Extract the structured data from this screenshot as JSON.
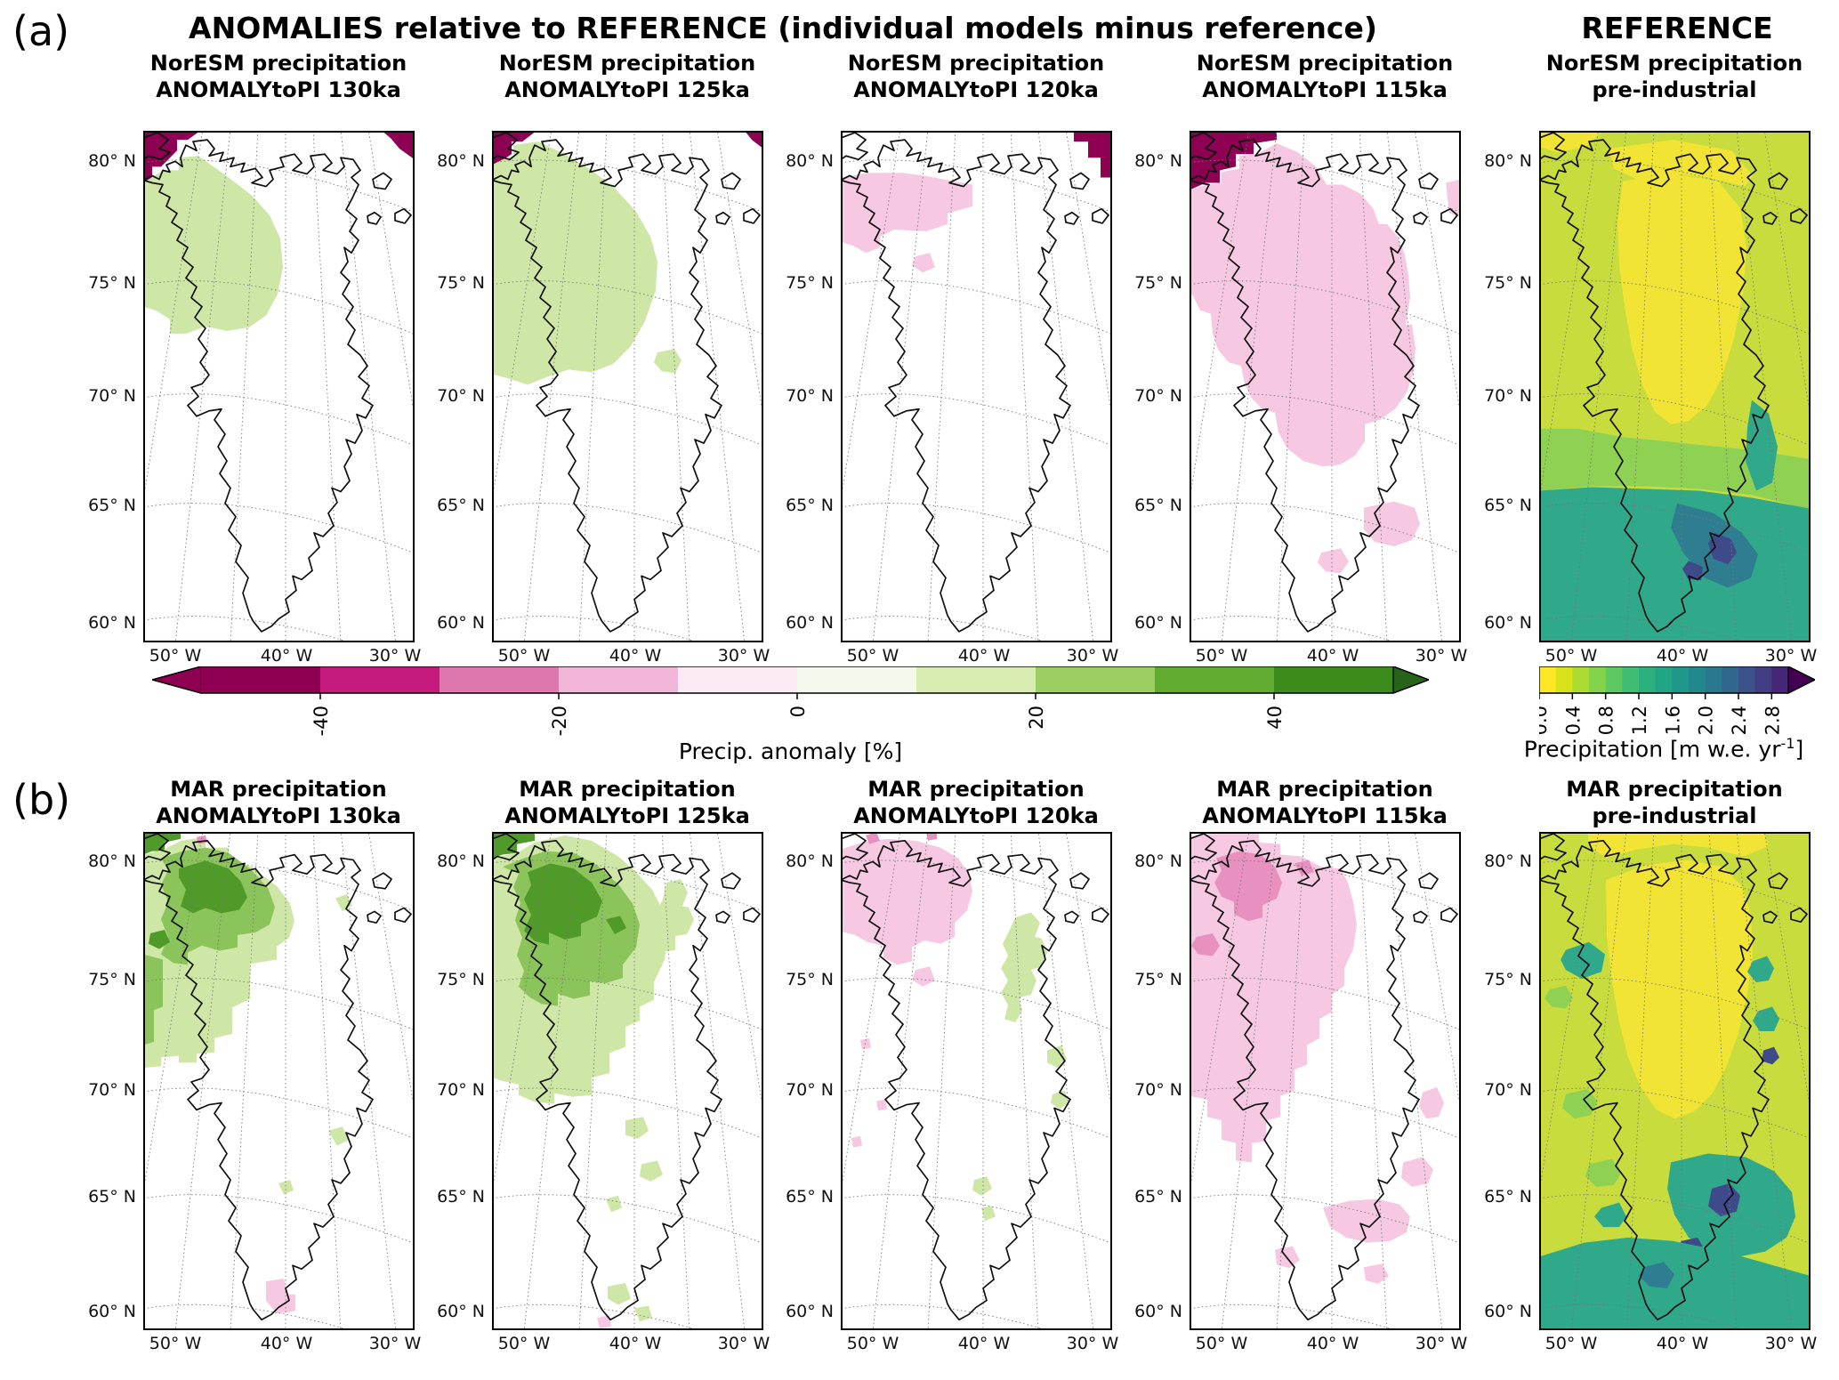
{
  "labels": {
    "panel_a": "(a)",
    "panel_b": "(b)"
  },
  "header": {
    "anomalies_title": "ANOMALIES relative to REFERENCE (individual models minus reference)",
    "reference_title": "REFERENCE"
  },
  "axes": {
    "lat_ticks": [
      "80° N",
      "75° N",
      "70° N",
      "65° N",
      "60° N"
    ],
    "lon_ticks": [
      "50° W",
      "40° W",
      "30° W"
    ]
  },
  "palette": {
    "white": "#ffffff",
    "pinkDarkest": "#8e0152",
    "pinkMed": "#e891c0",
    "pinkLight": "#f6c8e1",
    "greenLight": "#cfe7a6",
    "greenMed": "#8cc45c",
    "greenDark": "#4f9a28",
    "refBase": "#c9dc3e",
    "refYellow": "#f1e434",
    "refGreen": "#8ed153",
    "refTeal": "#2fa989",
    "refTealDark": "#2f7d90",
    "refBlue": "#3f4a8a"
  },
  "colorbars": {
    "anomaly": {
      "label": "Precip. anomaly [%]",
      "ticks": [
        "-40",
        "-20",
        "0",
        "20",
        "40"
      ],
      "tick_positions": [
        0.1,
        0.3,
        0.5,
        0.7,
        0.9
      ],
      "left_arrow": "#8e0152",
      "right_arrow": "#276419",
      "segments": [
        "#8e0152",
        "#c51b7d",
        "#de77ae",
        "#f1b6da",
        "#fbeaf3",
        "#f3f8eb",
        "#d9edb3",
        "#9ccf63",
        "#62ab31",
        "#3d8a1d"
      ]
    },
    "reference": {
      "label_pre": "Precipitation [m w.e. yr",
      "label_sup": "-1",
      "label_post": "]",
      "ticks": [
        "0.0",
        "0.4",
        "0.8",
        "1.2",
        "1.6",
        "2.0",
        "2.4",
        "2.8"
      ],
      "tick_positions": [
        0,
        0.1333,
        0.2667,
        0.4,
        0.5333,
        0.6667,
        0.8,
        0.9333
      ],
      "right_arrow": "#440154",
      "segments": [
        "#fde725",
        "#d8e219",
        "#addc30",
        "#84d44b",
        "#5ec962",
        "#40bd72",
        "#2cb17e",
        "#21a585",
        "#1f978b",
        "#23888e",
        "#2a788e",
        "#32678d",
        "#3b528b",
        "#433d84",
        "#462777"
      ]
    }
  },
  "rows": [
    {
      "id": "a",
      "maps": [
        {
          "title1": "NorESM precipitation",
          "title2": "ANOMALYtoPI 130ka",
          "type": "anomaly",
          "base": "white",
          "patches": [
            {
              "f": "pinkDarkest",
              "p": "0,0 64,0 50,10 38,10 38,22 20,40 10,40 10,52 0,58"
            },
            {
              "f": "pinkDarkest",
              "p": "268,0 305,0 305,32 288,20 278,8"
            },
            {
              "f": "greenLight",
              "p": "0,58 22,44 40,44 40,30 62,28 96,52 122,72 142,94 154,120 157,152 151,182 138,206 119,219 94,223 70,218 48,226 30,226 30,210 14,200 0,196"
            }
          ]
        },
        {
          "title1": "NorESM precipitation",
          "title2": "ANOMALYtoPI 125ka",
          "type": "anomaly",
          "base": "white",
          "patches": [
            {
              "f": "pinkDarkest",
              "p": "0,0 50,0 34,12 22,12 22,26 10,34 0,38"
            },
            {
              "f": "pinkDarkest",
              "p": "284,0 305,0 305,20 292,10"
            },
            {
              "f": "greenLight",
              "p": "0,38 12,32 24,28 24,16 52,12 82,26 112,44 138,64 162,90 178,118 186,146 184,178 172,212 156,240 136,260 112,269 86,266 60,275 40,283 22,277 0,271"
            },
            {
              "f": "greenLight",
              "p": "186,247 205,243 213,256 206,270 191,268 182,258"
            }
          ]
        },
        {
          "title1": "NorESM precipitation",
          "title2": "ANOMALYtoPI 120ka",
          "type": "anomaly",
          "base": "white",
          "patches": [
            {
              "f": "pinkDarkest",
              "p": "262,0 305,0 305,52 292,52 292,30 278,30 278,12 262,12"
            },
            {
              "f": "pinkLight",
              "p": "0,52 30,47 70,47 100,51 120,55 148,60 148,84 120,92 120,104 96,112 60,110 44,118 44,130 28,136 14,128 0,124"
            },
            {
              "f": "pinkLight",
              "p": "84,140 100,136 106,152 92,158 80,150"
            }
          ]
        },
        {
          "title1": "NorESM precipitation",
          "title2": "ANOMALYtoPI 115ka",
          "type": "anomaly",
          "base": "white",
          "patches": [
            {
              "f": "pinkDarkest",
              "p": "0,0 98,0 98,10 72,14 72,26 52,26 52,40 34,44 34,58 18,58 0,66"
            },
            {
              "f": "pinkLight",
              "p": "0,66 20,60 36,58 36,46 56,42 56,28 76,26 98,14 122,24 142,40 154,60 172,60 192,70 206,86 213,104 222,104 234,118 242,138 246,160 248,186 243,216 250,216 254,242 252,268 244,292 231,310 214,322 197,327 197,346 186,362 169,372 150,374 128,368 110,354 100,336 96,314 82,310 70,298 62,282 58,262 44,258 32,244 26,226 24,204 12,200 4,184 0,180"
            },
            {
              "f": "pinkLight",
              "p": "288,58 305,54 305,96 292,92"
            },
            {
              "f": "pinkLight",
              "p": "196,420 230,413 253,420 259,438 250,456 230,463 208,458 196,444"
            },
            {
              "f": "pinkLight",
              "p": "148,470 170,465 179,480 170,493 153,491 144,481"
            }
          ]
        },
        {
          "title1": "NorESM precipitation",
          "title2": "pre-industrial",
          "type": "reference",
          "base": "refBase",
          "patches": [
            {
              "f": "refYellow",
              "p": "0,0 72,0 52,18 20,24 0,18"
            },
            {
              "f": "refYellow",
              "p": "78,20 150,10 216,22 240,50 231,62 190,52 150,48 110,54 84,42"
            },
            {
              "f": "refYellow",
              "p": "94,56 150,48 201,56 226,86 233,131 229,181 219,231 205,276 189,306 168,323 148,327 130,313 116,283 104,241 96,196 90,149 88,101"
            },
            {
              "f": "refGreen",
              "p": "0,332 44,332 92,341 142,346 192,351 242,356 305,366 305,422 240,406 180,399 120,396 60,396 0,401"
            },
            {
              "f": "refTeal",
              "p": "0,401 60,397 120,399 180,401 240,409 305,421 305,570 0,570"
            },
            {
              "f": "refTeal",
              "p": "239,300 258,315 268,352 262,392 244,401 232,368 234,330"
            },
            {
              "f": "refTealDark",
              "p": "155,415 196,426 228,448 246,472 238,498 212,509 184,497 162,470 148,442"
            },
            {
              "f": "refBlue",
              "p": "197,448 216,455 222,470 212,483 196,477 190,460"
            },
            {
              "f": "refBlue",
              "p": "168,479 184,486 182,501 167,499 161,488"
            }
          ]
        }
      ]
    },
    {
      "id": "b",
      "maps": [
        {
          "title1": "MAR precipitation",
          "title2": "ANOMALYtoPI 130ka",
          "type": "anomaly",
          "base": "white",
          "patches": [
            {
              "f": "greenDark",
              "p": "0,0 42,0 42,8 24,12 24,22 10,22 0,26"
            },
            {
              "f": "greenLight",
              "p": "0,26 24,20 42,10 70,6 70,18 96,18 96,30 122,40 150,62 165,82 170,102 164,121 150,131 150,146 120,151 120,191 100,201 100,231 80,236 80,252 60,254 60,264 40,264 40,256 20,258 20,268 0,270"
            },
            {
              "f": "greenMed",
              "p": "20,30 44,22 70,18 96,24 120,42 140,64 148,86 142,106 126,115 106,118 106,132 86,136 66,130 50,138 50,152 34,150 20,140 28,120 20,100 28,80 20,60 28,44"
            },
            {
              "f": "greenMed",
              "p": "0,140 22,146 22,200 12,204 12,240 0,244"
            },
            {
              "f": "greenDark",
              "p": "40,42 70,33 96,42 110,57 117,75 108,89 88,93 70,87 56,93 42,85 48,66 40,52"
            },
            {
              "f": "greenDark",
              "p": "8,116 24,112 30,126 18,134 6,128"
            },
            {
              "f": "greenLight",
              "p": "216,76 229,71 235,84 224,91"
            },
            {
              "f": "greenLight",
              "p": "208,342 224,337 231,352 218,359"
            },
            {
              "f": "greenLight",
              "p": "152,402 165,398 169,410 158,415"
            },
            {
              "f": "pinkLight",
              "p": "138,514 158,511 162,529 171,529 171,548 150,551 138,536"
            },
            {
              "f": "pinkMed",
              "p": "60,6 70,4 72,12 62,14"
            }
          ]
        },
        {
          "title1": "MAR precipitation",
          "title2": "ANOMALYtoPI 125ka",
          "type": "anomaly",
          "base": "white",
          "patches": [
            {
              "f": "greenDark",
              "p": "0,0 48,0 48,10 28,14 28,24 12,26 0,30"
            },
            {
              "f": "greenLight",
              "p": "0,30 28,24 48,12 82,4 112,10 142,28 162,46 180,66 192,90 198,116 194,146 182,172 182,192 166,200 166,216 150,223 150,246 132,253 132,276 112,281 112,301 90,303 70,299 70,311 48,309 30,301 30,289 12,285 0,281"
            },
            {
              "f": "greenMed",
              "p": "12,40 36,30 60,22 92,24 118,38 142,60 158,82 166,106 162,132 147,152 147,167 128,173 110,171 110,187 92,191 74,185 74,199 56,197 42,189 30,177 36,159 28,141 34,121 26,101 32,81 24,63 30,48"
            },
            {
              "f": "greenDark",
              "p": "40,46 66,36 92,42 112,58 124,79 118,97 100,105 100,119 82,123 64,115 64,129 48,125 36,113 44,95 36,77 44,61"
            },
            {
              "f": "greenDark",
              "p": "128,100 144,96 151,110 138,117"
            },
            {
              "f": "greenLight",
              "p": "196,58 212,54 220,69 214,85 221,86 227,101 219,117 206,119 206,135 194,137 186,121 192,105 184,93 192,77"
            },
            {
              "f": "greenLight",
              "p": "150,330 170,326 176,342 164,351 150,347"
            },
            {
              "f": "greenLight",
              "p": "168,380 186,376 192,392 178,400 166,394"
            },
            {
              "f": "greenLight",
              "p": "128,420 142,416 146,430 134,435"
            },
            {
              "f": "greenLight",
              "p": "130,520 150,516 156,534 142,541 130,534"
            },
            {
              "f": "greenLight",
              "p": "160,545 176,542 180,556 166,560"
            },
            {
              "f": "pinkLight",
              "p": "118,556 132,553 134,566 121,568"
            }
          ]
        },
        {
          "title1": "MAR precipitation",
          "title2": "ANOMALYtoPI 120ka",
          "type": "anomaly",
          "base": "white",
          "patches": [
            {
              "f": "pinkLight",
              "p": "0,20 24,12 52,8 84,10 112,18 132,30 144,48 148,68 142,90 128,104 128,120 112,128 94,124 80,132 80,148 64,152 48,144 48,130 30,126 16,118 0,114"
            },
            {
              "f": "pinkLight",
              "p": "84,158 100,154 106,170 92,177 80,169"
            },
            {
              "f": "pinkMed",
              "p": "28,4 40,0 44,10 32,14"
            },
            {
              "f": "pinkMed",
              "p": "96,0 108,0 108,8 98,10"
            },
            {
              "f": "greenLight",
              "p": "196,98 214,92 224,104 218,120 226,122 232,138 226,154 214,158 220,170 214,186 200,190 204,204 196,218 184,214 188,198 180,184 188,170 180,156 188,142 182,128 190,112"
            },
            {
              "f": "greenLight",
              "p": "232,250 248,244 254,260 244,270 232,264"
            },
            {
              "f": "greenLight",
              "p": "238,300 252,296 256,310 246,317 236,310"
            },
            {
              "f": "greenLight",
              "p": "150,398 164,394 170,408 158,416 148,410"
            },
            {
              "f": "greenLight",
              "p": "158,430 170,428 174,440 162,445"
            },
            {
              "f": "pinkLight",
              "p": "22,238 32,236 34,247 24,249"
            },
            {
              "f": "pinkLight",
              "p": "40,308 50,306 52,317 42,319"
            },
            {
              "f": "pinkLight",
              "p": "12,350 22,348 24,359 14,361"
            }
          ]
        },
        {
          "title1": "MAR precipitation",
          "title2": "ANOMALYtoPI 115ka",
          "type": "anomaly",
          "base": "white",
          "patches": [
            {
              "f": "pinkLight",
              "p": "0,6 34,0 78,0 78,12 102,14 102,26 126,28 148,40 170,42 178,58 184,80 188,106 184,134 174,156 174,176 160,186 160,206 146,214 146,236 132,244 132,266 118,272 118,296 102,302 102,326 86,330 86,354 70,356 70,378 52,376 52,356 36,352 36,330 20,326 20,306 0,302"
            },
            {
              "f": "pinkMed",
              "p": "30,30 56,22 80,26 96,40 104,58 98,76 82,84 82,98 66,102 50,94 50,80 36,74 28,58 36,44"
            },
            {
              "f": "pinkMed",
              "p": "8,120 26,116 34,130 26,142 10,140 2,130"
            },
            {
              "f": "pinkMed",
              "p": "118,36 134,32 140,46 126,50"
            },
            {
              "f": "pinkLight",
              "p": "262,298 278,292 286,310 280,326 266,328 258,314"
            },
            {
              "f": "pinkLight",
              "p": "240,378 262,372 274,386 268,402 250,406 238,396"
            },
            {
              "f": "pinkLight",
              "p": "150,430 180,422 210,420 236,426 248,440 244,458 226,468 200,470 176,464 158,452"
            },
            {
              "f": "pinkLight",
              "p": "96,478 116,474 124,490 112,499 98,495"
            },
            {
              "f": "pinkLight",
              "p": "196,498 216,494 224,508 212,517 198,513"
            }
          ]
        },
        {
          "title1": "MAR precipitation",
          "title2": "pre-industrial",
          "type": "reference",
          "base": "refBase",
          "patches": [
            {
              "f": "refYellow",
              "p": "55,0 252,0 258,16 230,28 190,18 150,14 110,20 75,30 55,14"
            },
            {
              "f": "refYellow",
              "p": "75,55 120,38 166,32 206,40 228,62 238,95 240,140 234,185 224,230 210,270 194,300 174,320 152,328 132,318 114,292 100,258 90,218 82,172 76,120"
            },
            {
              "f": "refTeal",
              "p": "30,135 56,126 74,140 70,160 48,168 30,158 24,146"
            },
            {
              "f": "refGreen",
              "p": "12,180 30,176 38,190 30,202 14,200 6,190"
            },
            {
              "f": "refTeal",
              "p": "240,148 256,142 264,156 258,170 244,172 234,160"
            },
            {
              "f": "refTeal",
              "p": "246,205 262,200 270,214 264,228 248,228 240,216"
            },
            {
              "f": "refBlue",
              "p": "252,250 264,246 270,258 262,266 250,262"
            },
            {
              "f": "refTeal",
              "p": "148,378 190,368 232,372 264,388 284,412 288,440 278,464 254,480 224,486 194,480 168,464 152,438 144,408"
            },
            {
              "f": "refBlue",
              "p": "194,408 214,402 226,416 222,434 204,440 190,428"
            },
            {
              "f": "refBlue",
              "p": "160,468 178,464 186,478 178,490 162,488 154,476"
            },
            {
              "f": "refTeal",
              "p": "0,486 50,470 100,464 150,468 200,478 250,492 305,508 305,570 0,570"
            },
            {
              "f": "refTealDark",
              "p": "118,498 140,492 152,506 144,522 124,520 112,508"
            },
            {
              "f": "refGreen",
              "p": "30,300 54,294 66,308 58,324 40,328 26,316"
            },
            {
              "f": "refGreen",
              "p": "56,380 82,374 92,390 84,404 64,406 52,394"
            },
            {
              "f": "refTeal",
              "p": "70,430 90,424 98,440 90,452 72,452 62,440"
            }
          ]
        }
      ]
    }
  ]
}
